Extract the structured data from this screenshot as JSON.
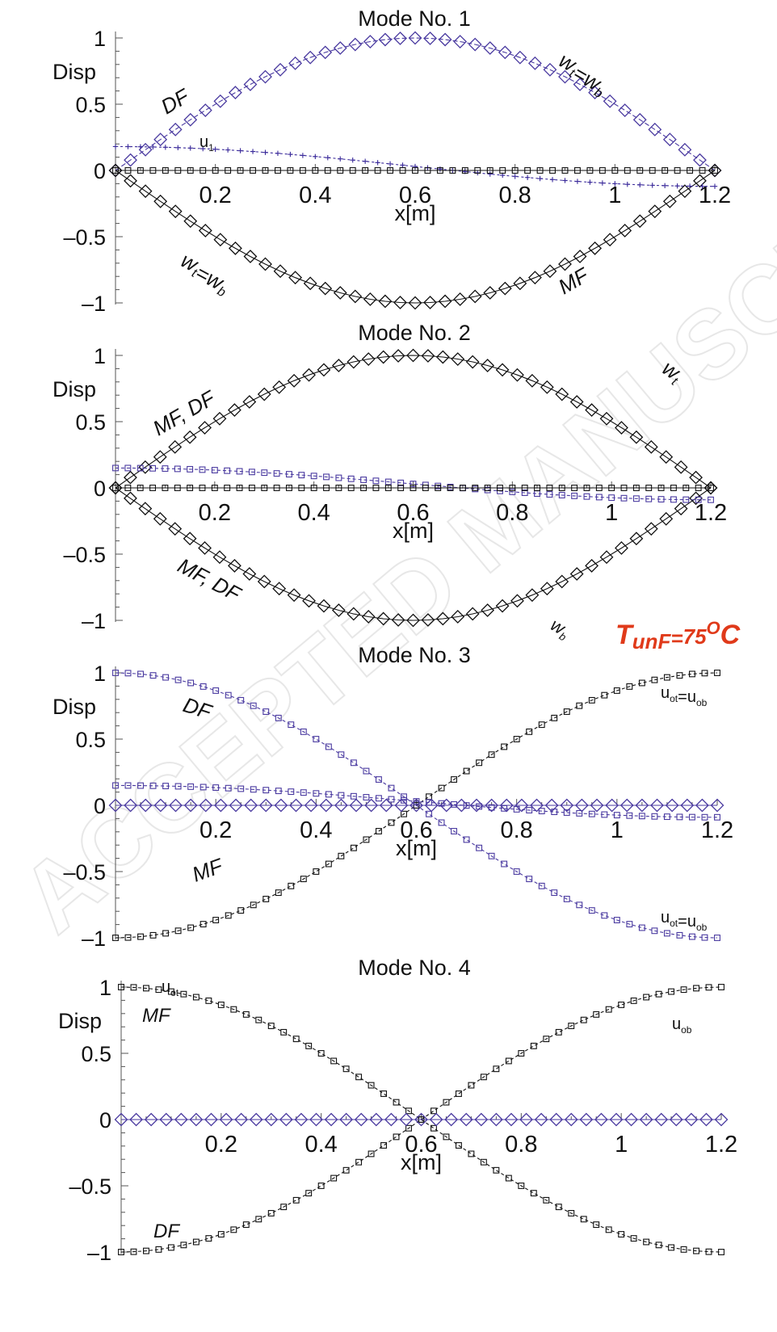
{
  "watermark": "ACCEPTED MANUSCRIPT",
  "temperature_label": {
    "text": "T",
    "sub": "unF",
    "value": "75",
    "sup": "O",
    "unit": "C"
  },
  "colors": {
    "black": "#111111",
    "purple": "#4a3aa0",
    "blue_purple": "#3a2a9a",
    "accent": "#e03a1a"
  },
  "chart_data": [
    {
      "type": "line",
      "title": "Mode No. 1",
      "xlabel": "x[m]",
      "ylabel": "Disp",
      "xlim": [
        0,
        1.2
      ],
      "ylim": [
        -1,
        1
      ],
      "xticks": [
        "0.2",
        "0.4",
        "0.6",
        "0.8",
        "1",
        "1.2"
      ],
      "yticks": [
        "1",
        "0.5",
        "0",
        "–0.5",
        "–1"
      ],
      "annotations": [
        {
          "parts": [
            {
              "t": "DF"
            }
          ]
        },
        {
          "parts": [
            {
              "t": "w"
            },
            {
              "t": "t",
              "sub": true
            },
            {
              "t": "=w"
            },
            {
              "t": "b",
              "sub": true
            }
          ]
        },
        {
          "parts": [
            {
              "t": "u"
            },
            {
              "t": "1",
              "sub": true
            }
          ],
          "plain": true
        },
        {
          "parts": [
            {
              "t": "w"
            },
            {
              "t": "t",
              "sub": true
            },
            {
              "t": "=w"
            },
            {
              "t": "b",
              "sub": true
            }
          ]
        },
        {
          "parts": [
            {
              "t": "MF"
            }
          ]
        }
      ],
      "series": [
        {
          "shape": "sin",
          "amp": 1,
          "color": "purple",
          "marker": "diamond",
          "dash": "6,3"
        },
        {
          "shape": "sin",
          "amp": -1,
          "color": "black",
          "marker": "diamond",
          "dash": ""
        },
        {
          "shape": "cos",
          "amp": 0.15,
          "offset": 0.03,
          "color": "blue_purple",
          "marker": "plus",
          "dash": "3,3"
        },
        {
          "shape": "const",
          "amp": 0,
          "color": "black",
          "marker": "square",
          "dash": ""
        }
      ]
    },
    {
      "type": "line",
      "title": "Mode No. 2",
      "xlabel": "x[m]",
      "ylabel": "Disp",
      "xlim": [
        0,
        1.2
      ],
      "ylim": [
        -1,
        1
      ],
      "xticks": [
        "0.2",
        "0.4",
        "0.6",
        "0.8",
        "1",
        "1.2"
      ],
      "yticks": [
        "1",
        "0.5",
        "0",
        "–0.5",
        "–1"
      ],
      "annotations": [
        {
          "parts": [
            {
              "t": "MF, DF"
            }
          ]
        },
        {
          "parts": [
            {
              "t": "w"
            },
            {
              "t": "t",
              "sub": true
            }
          ]
        },
        {
          "parts": [
            {
              "t": "MF, DF"
            }
          ]
        },
        {
          "parts": [
            {
              "t": "w"
            },
            {
              "t": "b",
              "sub": true
            }
          ]
        }
      ],
      "series": [
        {
          "shape": "sin",
          "amp": 1,
          "color": "black",
          "marker": "diamond",
          "dash": ""
        },
        {
          "shape": "sin",
          "amp": -1,
          "color": "black",
          "marker": "diamond",
          "dash": ""
        },
        {
          "shape": "cos",
          "amp": 0.12,
          "offset": 0.03,
          "color": "purple",
          "marker": "square",
          "dash": "4,3"
        },
        {
          "shape": "const",
          "amp": 0,
          "color": "black",
          "marker": "square",
          "dash": ""
        }
      ]
    },
    {
      "type": "line",
      "title": "Mode No. 3",
      "xlabel": "x[m]",
      "ylabel": "Disp",
      "xlim": [
        0,
        1.2
      ],
      "ylim": [
        -1,
        1
      ],
      "xticks": [
        "0.2",
        "0.4",
        "0.6",
        "0.8",
        "1",
        "1.2"
      ],
      "yticks": [
        "1",
        "0.5",
        "0",
        "–0.5",
        "–1"
      ],
      "annotations": [
        {
          "parts": [
            {
              "t": "DF"
            }
          ]
        },
        {
          "parts": [
            {
              "t": "u"
            },
            {
              "t": "ot",
              "sub": true
            },
            {
              "t": "=u"
            },
            {
              "t": "ob",
              "sub": true
            }
          ],
          "plain": true
        },
        {
          "parts": [
            {
              "t": "MF"
            }
          ]
        },
        {
          "parts": [
            {
              "t": "u"
            },
            {
              "t": "ot",
              "sub": true
            },
            {
              "t": "=u"
            },
            {
              "t": "ob",
              "sub": true
            }
          ],
          "plain": true
        }
      ],
      "series": [
        {
          "shape": "cos",
          "amp": 1,
          "color": "purple",
          "marker": "square",
          "dash": "4,3"
        },
        {
          "shape": "cos",
          "amp": -1,
          "color": "black",
          "marker": "square",
          "dash": "4,3"
        },
        {
          "shape": "cos",
          "amp": 0.12,
          "offset": 0.03,
          "color": "purple",
          "marker": "square",
          "dash": "4,3"
        },
        {
          "shape": "const",
          "amp": 0,
          "color": "purple",
          "marker": "diamond",
          "dash": ""
        }
      ]
    },
    {
      "type": "line",
      "title": "Mode No. 4",
      "xlabel": "x[m]",
      "ylabel": "Disp",
      "xlim": [
        0,
        1.2
      ],
      "ylim": [
        -1,
        1
      ],
      "xticks": [
        "0.2",
        "0.4",
        "0.6",
        "0.8",
        "1",
        "1.2"
      ],
      "yticks": [
        "1",
        "0.5",
        "0",
        "–0.5",
        "–1"
      ],
      "annotations": [
        {
          "parts": [
            {
              "t": "u"
            },
            {
              "t": "ot",
              "sub": true
            }
          ],
          "plain": true
        },
        {
          "parts": [
            {
              "t": "MF"
            }
          ]
        },
        {
          "parts": [
            {
              "t": "u"
            },
            {
              "t": "ob",
              "sub": true
            }
          ],
          "plain": true
        },
        {
          "parts": [
            {
              "t": "DF"
            }
          ]
        }
      ],
      "series": [
        {
          "shape": "cos",
          "amp": 1,
          "color": "black",
          "marker": "square",
          "dash": "4,3"
        },
        {
          "shape": "cos",
          "amp": -1,
          "color": "black",
          "marker": "square",
          "dash": "4,3"
        },
        {
          "shape": "const",
          "amp": 0,
          "color": "purple",
          "marker": "diamond",
          "dash": ""
        }
      ]
    }
  ]
}
